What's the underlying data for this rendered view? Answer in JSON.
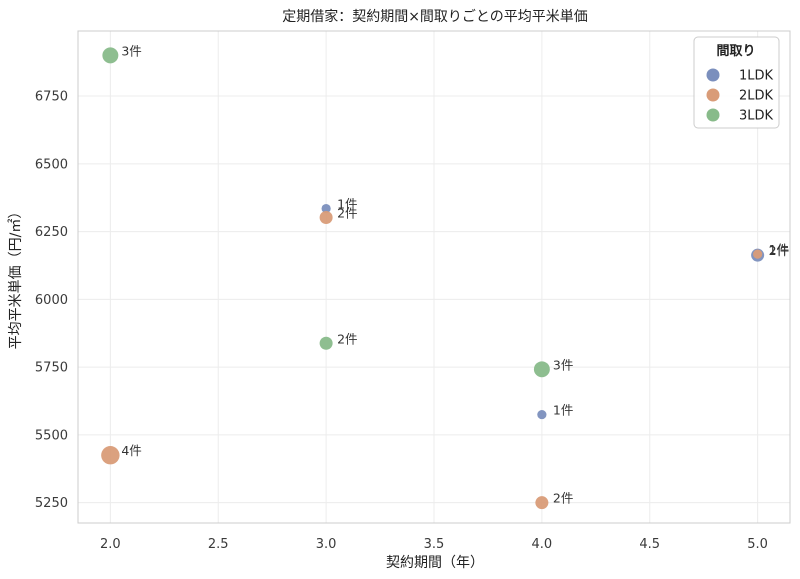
{
  "chart_data": {
    "type": "scatter",
    "title": "定期借家：契約期間×間取りごとの平均平米単価",
    "xlabel": "契約期間（年）",
    "ylabel": "平均平米単価（円/㎡）",
    "xlim": [
      1.85,
      5.15
    ],
    "ylim": [
      5175,
      6990
    ],
    "xticks": [
      2.0,
      2.5,
      3.0,
      3.5,
      4.0,
      4.5,
      5.0
    ],
    "xtick_labels": [
      "2.0",
      "2.5",
      "3.0",
      "3.5",
      "4.0",
      "4.5",
      "5.0"
    ],
    "yticks": [
      5250,
      5500,
      5750,
      6000,
      6250,
      6500,
      6750
    ],
    "grid": true,
    "legend": {
      "title": "間取り",
      "placement": "top-right"
    },
    "series": [
      {
        "name": "1LDK",
        "color": "#7b8fbd",
        "points": [
          {
            "x": 3.0,
            "y": 6335,
            "count": 1,
            "label": "1件"
          },
          {
            "x": 4.0,
            "y": 5575,
            "count": 1,
            "label": "1件"
          },
          {
            "x": 5.0,
            "y": 6163,
            "count": 2,
            "label": "2件"
          }
        ]
      },
      {
        "name": "2LDK",
        "color": "#d99c78",
        "points": [
          {
            "x": 2.0,
            "y": 5425,
            "count": 4,
            "label": "4件"
          },
          {
            "x": 3.0,
            "y": 6302,
            "count": 2,
            "label": "2件"
          },
          {
            "x": 4.0,
            "y": 5250,
            "count": 2,
            "label": "2件"
          },
          {
            "x": 5.0,
            "y": 6167,
            "count": 1,
            "label": "1件"
          }
        ]
      },
      {
        "name": "3LDK",
        "color": "#88bb8a",
        "points": [
          {
            "x": 2.0,
            "y": 6900,
            "count": 3,
            "label": "3件"
          },
          {
            "x": 3.0,
            "y": 5838,
            "count": 2,
            "label": "2件"
          },
          {
            "x": 4.0,
            "y": 5742,
            "count": 3,
            "label": "3件"
          }
        ]
      }
    ]
  }
}
